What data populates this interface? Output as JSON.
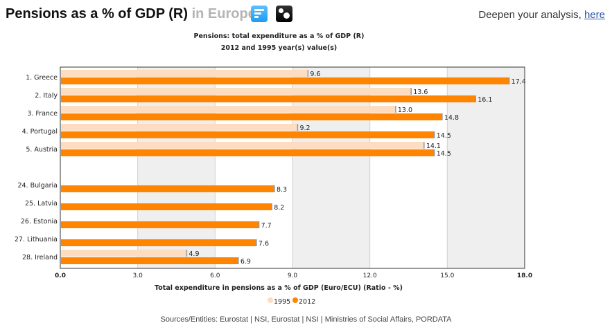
{
  "header": {
    "title": "Pensions as a % of GDP (R)",
    "region": "in Europe",
    "icons": [
      "bar-chart-icon",
      "dots-toggle-icon"
    ],
    "deepen_text": "Deepen your analysis,",
    "deepen_link": "here"
  },
  "colors": {
    "series_1995": "#fddcc0",
    "series_2012": "#ff8400",
    "band": "#efefef",
    "grid": "#d0d0d0"
  },
  "chart_data": {
    "type": "bar",
    "orientation": "horizontal",
    "title": "Pensions: total expenditure as a % of GDP (R)",
    "subtitle": "2012 and 1995 year(s) value(s)",
    "xlabel": "Total expenditure in pensions as a % of GDP (Euro/ECU) (Ratio - %)",
    "ylabel": "",
    "xlim": [
      0,
      18
    ],
    "xticks": [
      "0.0",
      "3.0",
      "6.0",
      "9.0",
      "12.0",
      "15.0",
      "18.0"
    ],
    "grid": true,
    "legend_position": "bottom",
    "categories": [
      "1. Greece",
      "2. Italy",
      "3. France",
      "4. Portugal",
      "5. Austria",
      "",
      "24. Bulgaria",
      "25. Latvia",
      "26. Estonia",
      "27. Lithuania",
      "28. Ireland"
    ],
    "series": [
      {
        "name": "1995",
        "values": [
          9.6,
          13.6,
          13.0,
          9.2,
          14.1,
          null,
          null,
          null,
          null,
          null,
          4.9
        ]
      },
      {
        "name": "2012",
        "values": [
          17.4,
          16.1,
          14.8,
          14.5,
          14.5,
          null,
          8.3,
          8.2,
          7.7,
          7.6,
          6.9
        ]
      }
    ]
  },
  "sources": "Sources/Entities: Eurostat | NSI, Eurostat | NSI | Ministries of Social Affairs, PORDATA"
}
